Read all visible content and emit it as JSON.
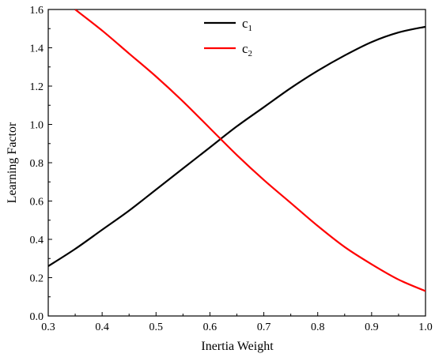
{
  "chart_data": {
    "type": "line",
    "xlabel": "Inertia Weight",
    "ylabel": "Learning Factor",
    "xlim": [
      0.3,
      1.0
    ],
    "ylim": [
      0.0,
      1.6
    ],
    "xticks": [
      "0.3",
      "0.4",
      "0.5",
      "0.6",
      "0.7",
      "0.8",
      "0.9",
      "1.0"
    ],
    "yticks": [
      "0.0",
      "0.2",
      "0.4",
      "0.6",
      "0.8",
      "1.0",
      "1.2",
      "1.4",
      "1.6"
    ],
    "grid": false,
    "legend": "top-center",
    "series": [
      {
        "name": "c",
        "subscript": "1",
        "color": "#000000",
        "x": [
          0.3,
          0.35,
          0.4,
          0.45,
          0.5,
          0.55,
          0.6,
          0.65,
          0.7,
          0.75,
          0.8,
          0.85,
          0.9,
          0.95,
          1.0
        ],
        "y": [
          0.26,
          0.35,
          0.45,
          0.55,
          0.66,
          0.77,
          0.88,
          0.99,
          1.09,
          1.19,
          1.28,
          1.36,
          1.43,
          1.48,
          1.51
        ]
      },
      {
        "name": "c",
        "subscript": "2",
        "color": "#ff0000",
        "x": [
          0.35,
          0.4,
          0.45,
          0.5,
          0.55,
          0.6,
          0.65,
          0.7,
          0.75,
          0.8,
          0.85,
          0.9,
          0.95,
          1.0
        ],
        "y": [
          1.6,
          1.49,
          1.37,
          1.25,
          1.12,
          0.98,
          0.84,
          0.71,
          0.59,
          0.47,
          0.36,
          0.27,
          0.19,
          0.13
        ]
      }
    ]
  }
}
